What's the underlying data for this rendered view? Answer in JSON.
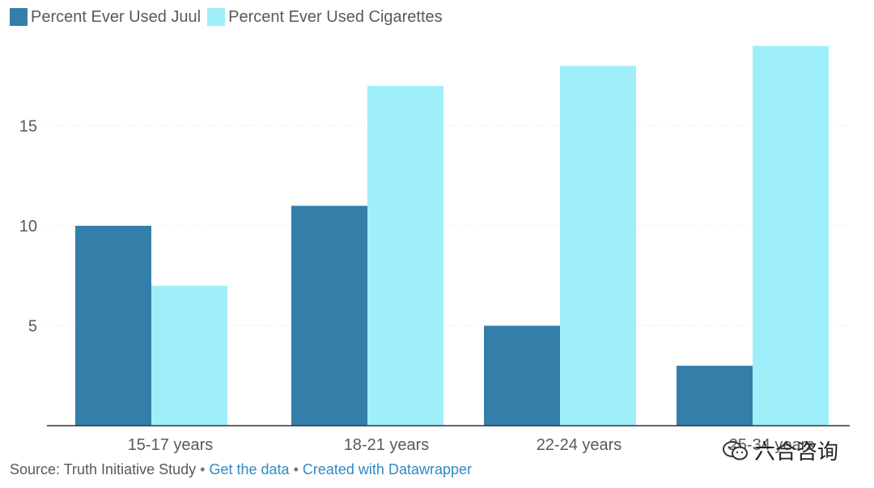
{
  "chart_data": {
    "type": "bar",
    "categories": [
      "15-17 years",
      "18-21 years",
      "22-24 years",
      "25-34 years"
    ],
    "series": [
      {
        "name": "Percent Ever Used Juul",
        "values": [
          10,
          11,
          5,
          3
        ],
        "color": "#347faa"
      },
      {
        "name": "Percent Ever Used Cigarettes",
        "values": [
          7,
          17,
          18,
          19
        ],
        "color": "#9eeffa"
      }
    ],
    "yticks": [
      5,
      10,
      15
    ],
    "ylim": [
      0,
      19
    ],
    "grid": true,
    "legend_position": "top-left"
  },
  "footer": {
    "source": "Source: Truth Initiative Study",
    "separator": "•",
    "get_data": "Get the data",
    "created_with": "Created with Datawrapper"
  },
  "watermark": {
    "text": "六合咨询",
    "icon": "wechat-icon"
  }
}
